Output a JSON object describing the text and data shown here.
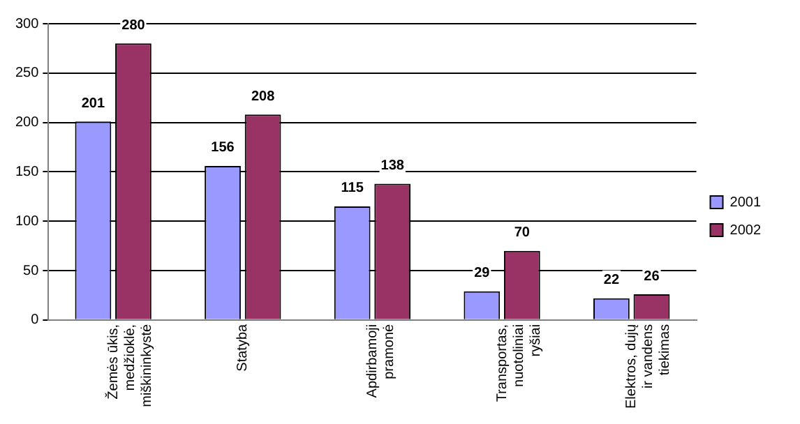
{
  "chart_data": {
    "type": "bar",
    "categories": [
      "Žemės ūkis, medžioklė, miškininkystė",
      "Statyba",
      "Apdirbamoji pramonė",
      "Transportas, nuotoliniai ryšiai",
      "Elektros, dujų ir vandens tiekimas"
    ],
    "series": [
      {
        "name": "2001",
        "color": "#9999ff",
        "values": [
          201,
          156,
          115,
          29,
          22
        ]
      },
      {
        "name": "2002",
        "color": "#993366",
        "values": [
          280,
          208,
          138,
          70,
          26
        ]
      }
    ],
    "ylim": [
      0,
      300
    ],
    "yticks": [
      0,
      50,
      100,
      150,
      200,
      250,
      300
    ],
    "grid": "y",
    "legend": "right",
    "data_labels": true
  }
}
